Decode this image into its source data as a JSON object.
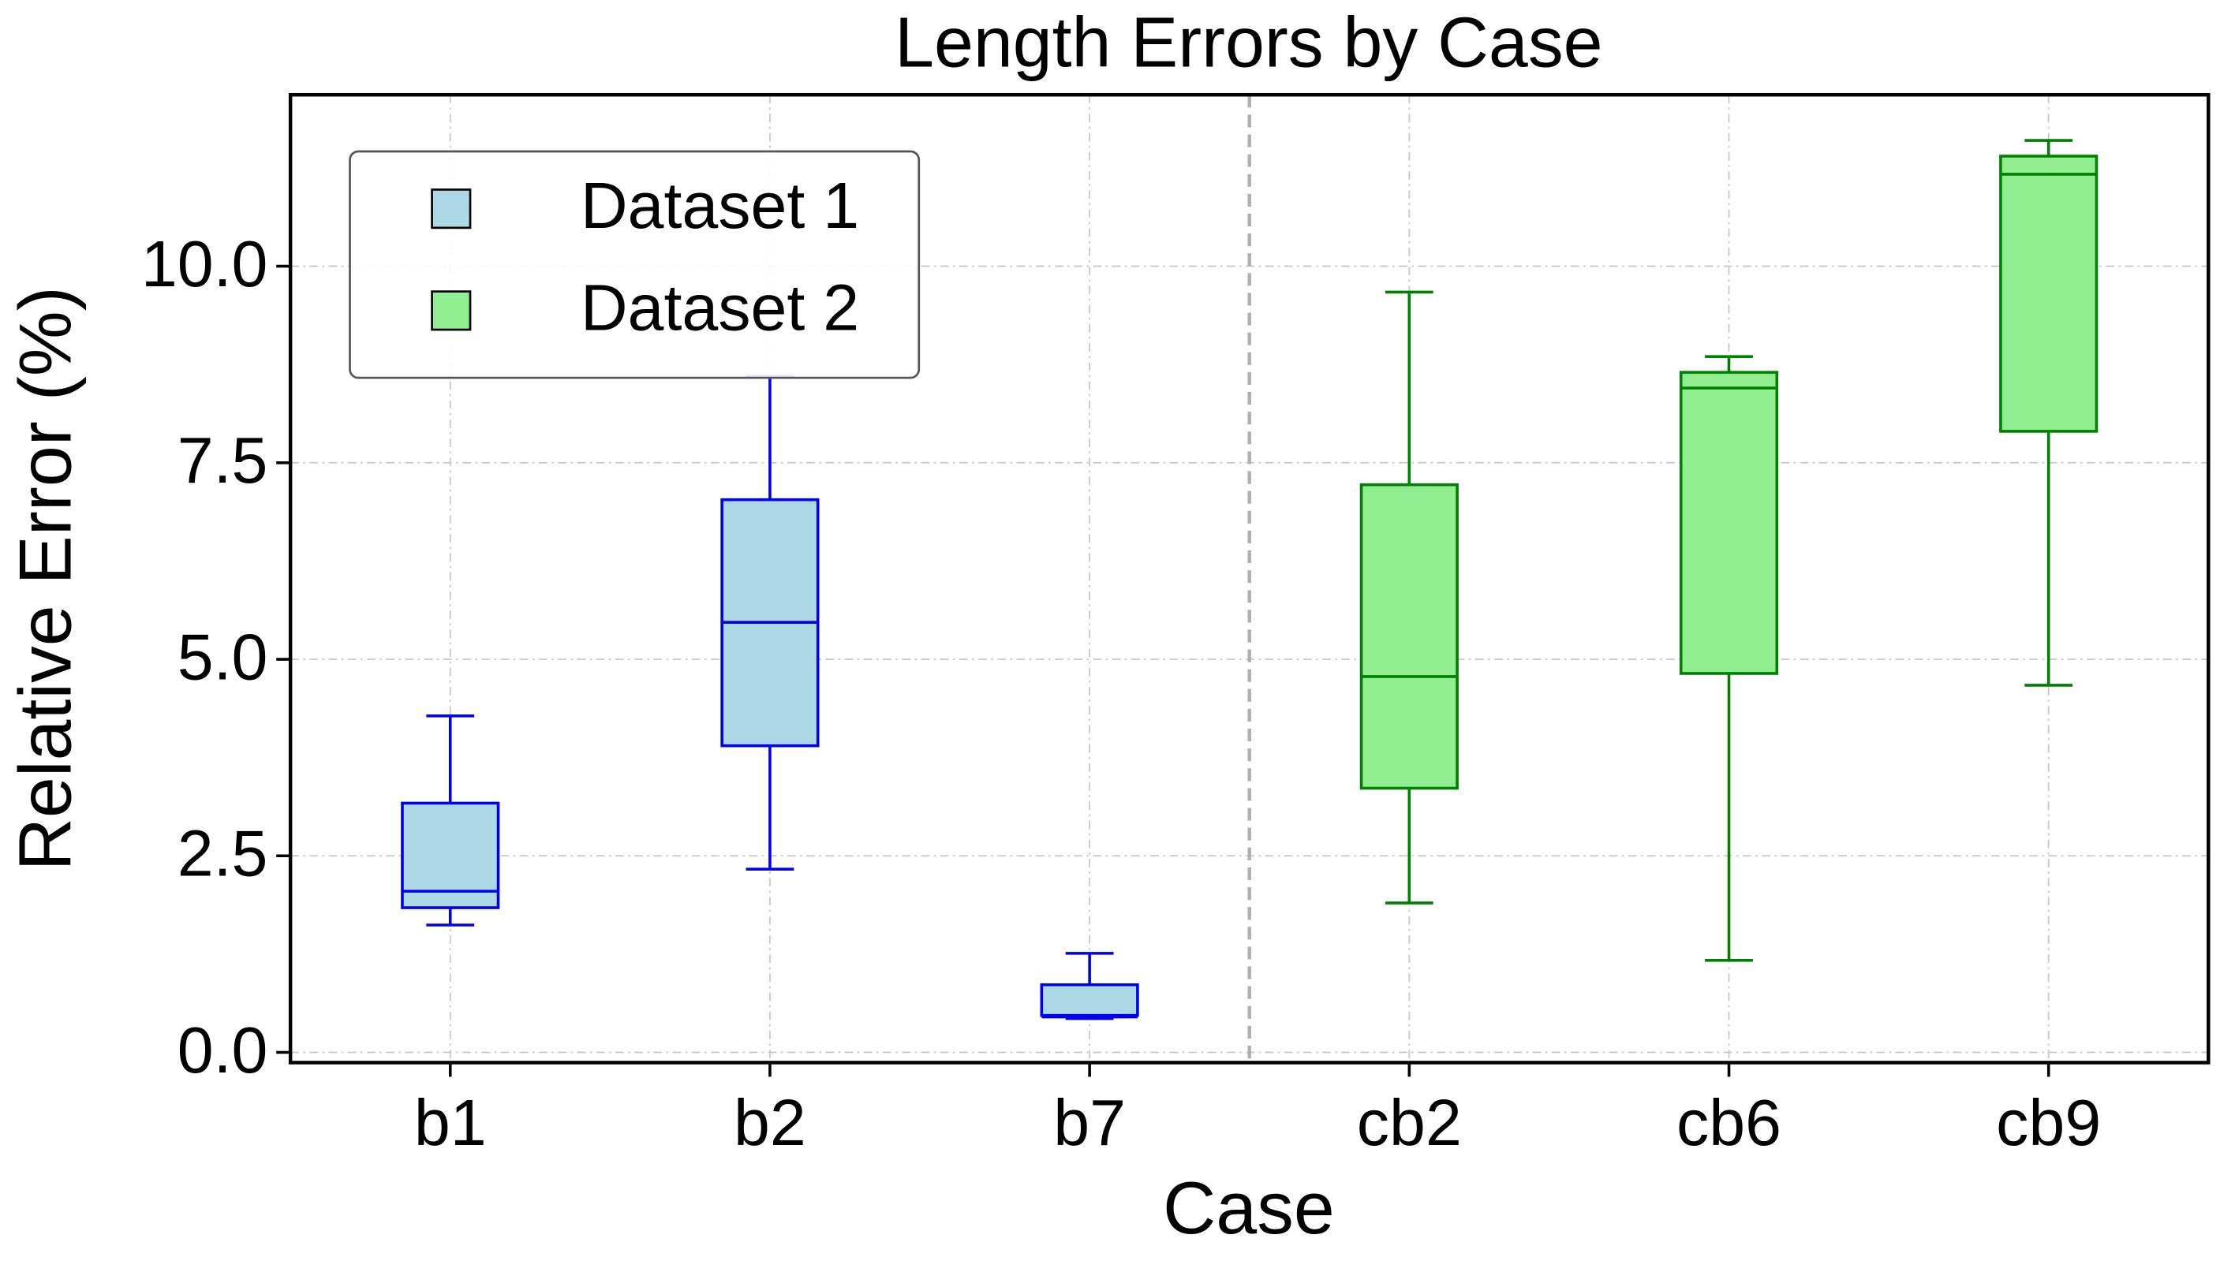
{
  "chart_data": {
    "type": "box",
    "title": "Length Errors by Case",
    "x_label": "Case",
    "y_label": "Relative Error (%)",
    "categories": [
      "b1",
      "b2",
      "b7",
      "cb2",
      "cb6",
      "cb9"
    ],
    "series": [
      {
        "name": "Dataset 1",
        "color": "#add8e6",
        "edgecolor": "#0000ee",
        "whislo": [
          1.62,
          2.33,
          0.43,
          null,
          null,
          null
        ],
        "q1": [
          1.84,
          3.9,
          0.47,
          null,
          null,
          null
        ],
        "med": [
          2.05,
          5.47,
          0.45,
          null,
          null,
          null
        ],
        "q3": [
          3.17,
          7.03,
          0.86,
          null,
          null,
          null
        ],
        "whishi": [
          4.28,
          8.6,
          1.26,
          null,
          null,
          null
        ]
      },
      {
        "name": "Dataset 2",
        "color": "#90ee90",
        "edgecolor": "#008000",
        "whislo": [
          null,
          null,
          null,
          1.9,
          1.17,
          4.67
        ],
        "q1": [
          null,
          null,
          null,
          3.36,
          4.82,
          7.9
        ],
        "med": [
          null,
          null,
          null,
          4.78,
          8.45,
          11.17
        ],
        "q3": [
          null,
          null,
          null,
          7.22,
          8.65,
          11.4
        ],
        "whishi": [
          null,
          null,
          null,
          9.67,
          8.85,
          11.6
        ]
      }
    ],
    "xlim": [
      -0.5,
      5.5
    ],
    "separator_x": 2.5,
    "ylim": [
      -0.13,
      12.18
    ],
    "yticks": [
      {
        "value": 0,
        "label": "0.0"
      },
      2.5,
      {
        "value": 5,
        "label": "5.0"
      },
      7.5,
      {
        "value": 10,
        "label": "10.0"
      }
    ],
    "grid": true,
    "legend": "upper left"
  }
}
